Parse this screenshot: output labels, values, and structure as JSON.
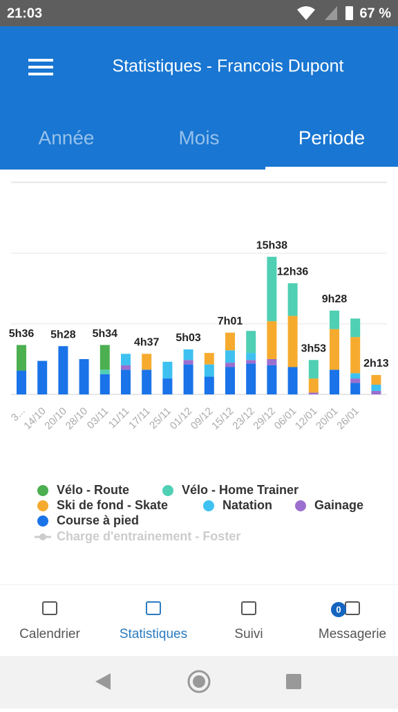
{
  "status_bar": {
    "time": "21:03",
    "battery": "67 %"
  },
  "app_bar": {
    "title": "Statistiques - Francois Dupont"
  },
  "tabs": [
    "Année",
    "Mois",
    "Periode"
  ],
  "chart_data": {
    "type": "stacked_bar",
    "categories": [
      "3...",
      "14/10",
      "20/10",
      "28/10",
      "03/11",
      "11/11",
      "17/11",
      "25/11",
      "01/12",
      "09/12",
      "15/12",
      "23/12",
      "29/12",
      "06/01",
      "12/01",
      "20/01",
      "26/01",
      null
    ],
    "series": [
      {
        "name": "Vélo - Route",
        "color": "#4caf50",
        "values": [
          2.9,
          0,
          0,
          0,
          2.8,
          0,
          0,
          0,
          0,
          0,
          0,
          0,
          0,
          0,
          0,
          0,
          0,
          0
        ]
      },
      {
        "name": "Vélo - Home Trainer",
        "color": "#4fcfb4",
        "values": [
          0,
          0,
          0,
          0,
          0.5,
          0,
          0,
          0,
          0,
          0,
          0,
          2.5,
          7.3,
          3.7,
          2.1,
          2.1,
          2.1,
          0
        ]
      },
      {
        "name": "Ski de fond - Skate",
        "color": "#f6ab2f",
        "values": [
          0,
          0,
          0,
          0,
          0,
          0,
          1.8,
          0,
          0,
          1.3,
          2.0,
          0,
          4.3,
          5.8,
          1.6,
          4.6,
          4.1,
          1.1
        ]
      },
      {
        "name": "Natation",
        "color": "#3ec1f0",
        "values": [
          0,
          0,
          0,
          0,
          0,
          1.3,
          0,
          1.9,
          1.2,
          1.4,
          1.4,
          0.8,
          0,
          0,
          0,
          0,
          0.6,
          0.7
        ]
      },
      {
        "name": "Gainage",
        "color": "#9b6fcf",
        "values": [
          0,
          0,
          0,
          0,
          0,
          0.5,
          0,
          0,
          0.5,
          0,
          0.5,
          0.4,
          0.7,
          0,
          0.2,
          0,
          0.5,
          0.4
        ]
      },
      {
        "name": "Course à pied",
        "color": "#1a73e8",
        "values": [
          2.7,
          3.8,
          5.47,
          4.0,
          2.3,
          2.8,
          2.8,
          1.8,
          3.4,
          2.0,
          3.1,
          3.5,
          3.3,
          3.1,
          0,
          2.8,
          1.3,
          0
        ]
      }
    ],
    "hidden_series": {
      "name": "Charge d'entrainement - Foster",
      "color": "#cccccc"
    },
    "value_labels": [
      "5h36",
      null,
      "5h28",
      null,
      "5h34",
      null,
      "4h37",
      null,
      "5h03",
      null,
      "7h01",
      null,
      "15h38",
      "12h36",
      "3h53",
      "9h28",
      null,
      "2h13"
    ],
    "ylim": [
      0,
      24
    ],
    "yticks": [
      0,
      8,
      16,
      24
    ],
    "grid": true
  },
  "bottom_nav": {
    "items": [
      "Calendrier",
      "Statistiques",
      "Suivi",
      "Messagerie"
    ],
    "badge": 0
  }
}
